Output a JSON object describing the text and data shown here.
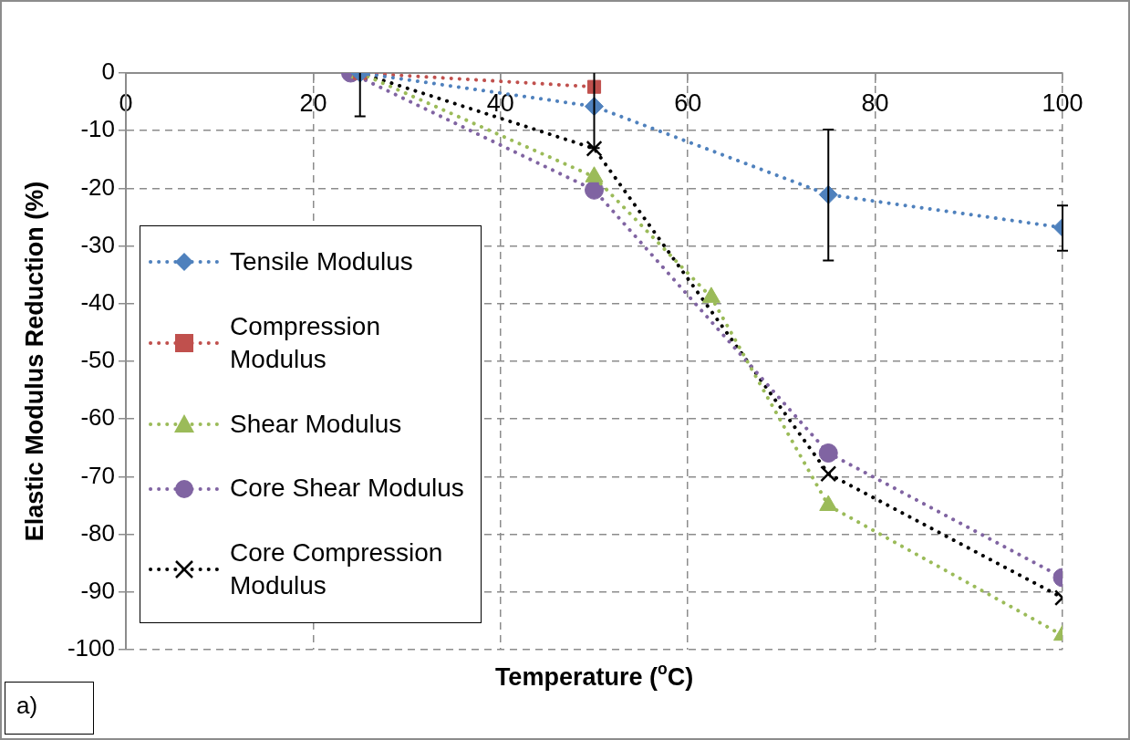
{
  "chart_data": {
    "type": "line",
    "xlabel": "Temperature ($^{o}$C)",
    "ylabel": "Elastic Modulus Reduction (%)",
    "xlim": [
      0,
      100
    ],
    "xticks": [
      0,
      20,
      40,
      60,
      80,
      100
    ],
    "ylim": [
      -100,
      0
    ],
    "yticks": [
      0,
      -10,
      -20,
      -30,
      -40,
      -50,
      -60,
      -70,
      -80,
      -90,
      -100
    ],
    "grid": true,
    "legend": "left",
    "line_style": "dotted",
    "annotations": [
      "a)"
    ],
    "series": [
      {
        "name": "Tensile Modulus",
        "color": "#4f81bd",
        "marker": "diamond",
        "x": [
          25,
          50,
          75,
          100
        ],
        "values": [
          0,
          -5.8,
          -21.1,
          -26.8
        ],
        "errors": [
          [
            -7.5,
            0
          ],
          [
            -13,
            0
          ],
          [
            -32.5,
            -9.8
          ],
          [
            -30.8,
            -23
          ]
        ]
      },
      {
        "name": "Compression Modulus",
        "color": "#c0504d",
        "marker": "square",
        "x": [
          25,
          50
        ],
        "values": [
          0,
          -2.4
        ]
      },
      {
        "name": "Shear Modulus",
        "color": "#9bbb59",
        "marker": "triangle",
        "x": [
          25,
          50,
          62.5,
          75,
          100
        ],
        "values": [
          0,
          -18,
          -38.9,
          -75,
          -97.5
        ]
      },
      {
        "name": "Core Shear Modulus",
        "color": "#8064a2",
        "marker": "circle",
        "x": [
          24,
          50,
          75,
          100
        ],
        "values": [
          0,
          -20.3,
          -65.9,
          -87.5
        ]
      },
      {
        "name": "Core Compression Modulus",
        "color": "#000000",
        "marker": "cross",
        "x": [
          25,
          50,
          75,
          100
        ],
        "values": [
          0,
          -13.1,
          -69.5,
          -91
        ]
      }
    ]
  }
}
